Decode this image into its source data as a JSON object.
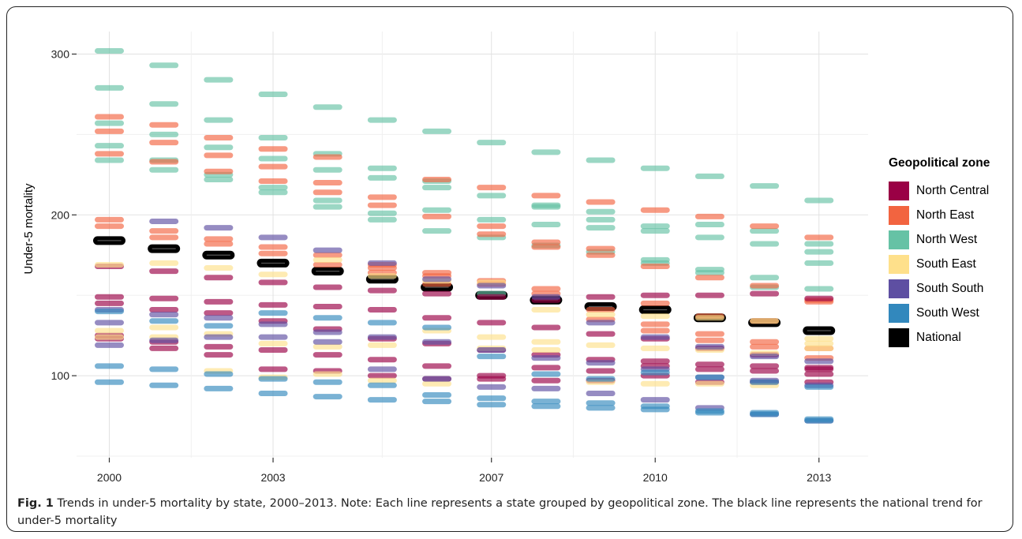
{
  "chart_data": {
    "type": "line",
    "ylabel": "Under-5 mortality",
    "xlabel": "",
    "x_ticks": [
      2000,
      2003,
      2007,
      2010,
      2013
    ],
    "y_ticks": [
      100,
      200,
      300
    ],
    "xlim": [
      1999.4,
      2013.9
    ],
    "ylim": [
      49,
      314
    ],
    "grid": true,
    "legend_position": "right",
    "legend_title": "Geopolitical zone",
    "colors": {
      "North Central": "#9a0045",
      "North East": "#f26440",
      "North West": "#66c2a5",
      "South East": "#fee08b",
      "South South": "#5e4fa2",
      "South West": "#3288bd",
      "National": "#000000"
    },
    "years": [
      2000,
      2001,
      2002,
      2003,
      2004,
      2005,
      2006,
      2007,
      2008,
      2009,
      2010,
      2011,
      2012,
      2013
    ],
    "series": [
      {
        "name": "National",
        "values": [
          184,
          179,
          175,
          170,
          165,
          160,
          155,
          150,
          147,
          143,
          141,
          136,
          133,
          128
        ]
      },
      {
        "name": "North West",
        "values": [
          302,
          293,
          284,
          275,
          267,
          259,
          252,
          245,
          239,
          234,
          229,
          224,
          218,
          209
        ]
      },
      {
        "name": "North West",
        "values": [
          279,
          269,
          259,
          248,
          238,
          229,
          221,
          212,
          206,
          202,
          193,
          186,
          182,
          182
        ]
      },
      {
        "name": "North West",
        "values": [
          257,
          250,
          242,
          235,
          228,
          223,
          217,
          197,
          194,
          197,
          190,
          194,
          190,
          177
        ]
      },
      {
        "name": "North West",
        "values": [
          243,
          228,
          222,
          217,
          209,
          201,
          203,
          186,
          181,
          192,
          172,
          166,
          161,
          170
        ]
      },
      {
        "name": "North West",
        "values": [
          234,
          234,
          225,
          214,
          205,
          197,
          190,
          151,
          205,
          177,
          170,
          164,
          155,
          154
        ]
      },
      {
        "name": "North East",
        "values": [
          261,
          256,
          248,
          241,
          236,
          211,
          222,
          217,
          212,
          208,
          203,
          199,
          193,
          186
        ]
      },
      {
        "name": "North East",
        "values": [
          252,
          245,
          237,
          230,
          220,
          206,
          199,
          193,
          183,
          179,
          168,
          161,
          156,
          146
        ]
      },
      {
        "name": "North East",
        "values": [
          238,
          233,
          227,
          221,
          214,
          169,
          164,
          159,
          154,
          141,
          145,
          137,
          134,
          147
        ]
      },
      {
        "name": "North East",
        "values": [
          197,
          190,
          185,
          180,
          175,
          167,
          162,
          157,
          151,
          135,
          132,
          126,
          121,
          117
        ]
      },
      {
        "name": "North East",
        "values": [
          193,
          186,
          182,
          176,
          169,
          164,
          157,
          188,
          180,
          175,
          128,
          122,
          118,
          111
        ]
      },
      {
        "name": "North Central",
        "values": [
          168,
          165,
          161,
          158,
          155,
          153,
          151,
          149,
          147,
          149,
          150,
          150,
          151,
          148
        ]
      },
      {
        "name": "North Central",
        "values": [
          149,
          148,
          146,
          144,
          143,
          141,
          136,
          133,
          130,
          126,
          123,
          117,
          113,
          105
        ]
      },
      {
        "name": "North Central",
        "values": [
          145,
          141,
          139,
          134,
          129,
          123,
          120,
          116,
          113,
          110,
          106,
          104,
          103,
          101
        ]
      },
      {
        "name": "North Central",
        "values": [
          123,
          121,
          118,
          116,
          113,
          110,
          106,
          100,
          105,
          103,
          109,
          107,
          106,
          104
        ]
      },
      {
        "name": "North Central",
        "values": [
          125,
          117,
          113,
          104,
          103,
          100,
          98,
          98,
          97,
          97,
          100,
          96,
          96,
          96
        ]
      },
      {
        "name": "South East",
        "values": [
          169,
          170,
          167,
          163,
          172,
          162,
          159,
          158,
          141,
          138,
          137,
          136,
          134,
          123
        ]
      },
      {
        "name": "South East",
        "values": [
          128,
          130,
          126,
          120,
          118,
          119,
          128,
          124,
          121,
          119,
          117,
          116,
          114,
          120
        ]
      },
      {
        "name": "South East",
        "values": [
          124,
          124,
          103,
          99,
          101,
          97,
          95,
          117,
          116,
          96,
          95,
          95,
          94,
          117
        ]
      },
      {
        "name": "South South",
        "values": [
          141,
          196,
          192,
          186,
          178,
          170,
          160,
          156,
          149,
          133,
          124,
          118,
          112,
          109
        ]
      },
      {
        "name": "South South",
        "values": [
          133,
          138,
          136,
          132,
          127,
          124,
          121,
          116,
          111,
          108,
          104,
          99,
          97,
          94
        ]
      },
      {
        "name": "South South",
        "values": [
          119,
          122,
          124,
          124,
          121,
          104,
          98,
          93,
          92,
          89,
          85,
          80,
          76,
          72
        ]
      },
      {
        "name": "South West",
        "values": [
          140,
          134,
          131,
          139,
          136,
          133,
          130,
          112,
          101,
          98,
          102,
          99,
          96,
          93
        ]
      },
      {
        "name": "South West",
        "values": [
          106,
          104,
          101,
          98,
          96,
          94,
          88,
          86,
          84,
          83,
          81,
          78,
          77,
          73
        ]
      },
      {
        "name": "South West",
        "values": [
          96,
          94,
          92,
          89,
          87,
          85,
          84,
          82,
          81,
          80,
          79,
          77,
          76,
          72
        ]
      }
    ]
  },
  "legend": {
    "title": "Geopolitical zone",
    "items": [
      "North Central",
      "North East",
      "North West",
      "South East",
      "South South",
      "South West",
      "National"
    ]
  },
  "caption": {
    "label": "Fig. 1",
    "text": " Trends in under-5 mortality by state, 2000–2013. Note: Each line represents a state grouped by geopolitical zone. The black line represents the national trend for under-5 mortality"
  }
}
